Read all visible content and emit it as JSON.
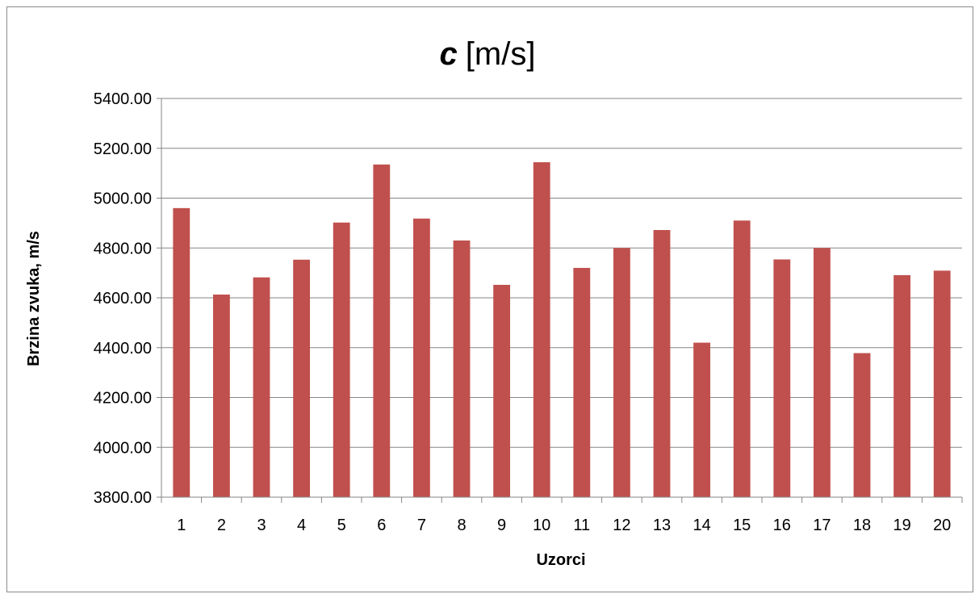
{
  "chart_data": {
    "type": "bar",
    "title": {
      "symbol": "c",
      "unit": "[m/s]"
    },
    "xlabel": "Uzorci",
    "ylabel": "Brzina zvuka, m/s",
    "categories": [
      "1",
      "2",
      "3",
      "4",
      "5",
      "6",
      "7",
      "8",
      "9",
      "10",
      "11",
      "12",
      "13",
      "14",
      "15",
      "16",
      "17",
      "18",
      "19",
      "20"
    ],
    "series": [
      {
        "values": [
          4960,
          4613,
          4682,
          4753,
          4902,
          5135,
          4918,
          4830,
          4652,
          5144,
          4720,
          4800,
          4872,
          4420,
          4910,
          4754,
          4800,
          4378,
          4691,
          4709
        ]
      }
    ],
    "ylim": [
      3800,
      5400
    ],
    "yticks": [
      "3800.00",
      "4000.00",
      "4200.00",
      "4400.00",
      "4600.00",
      "4800.00",
      "5000.00",
      "5200.00",
      "5400.00"
    ],
    "grid": true,
    "legend": "none",
    "bar_color": "#C0504D",
    "grid_color": "#868686"
  }
}
